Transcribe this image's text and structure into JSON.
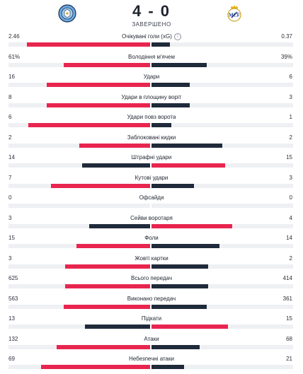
{
  "match": {
    "home_score": "4",
    "separator": "-",
    "away_score": "0",
    "status": "ЗАВЕРШЕНО"
  },
  "icons": {
    "home_logo": "manchester-city-crest-icon",
    "away_logo": "real-madrid-crest-icon",
    "info": "info-icon"
  },
  "colors": {
    "leading": "#e8254f",
    "trailing": "#1f2a3a",
    "track": "#eef0f3"
  },
  "stats": [
    {
      "label": "Очікувані голи (xG)",
      "home": "2.46",
      "away": "0.37",
      "home_share": 0.87,
      "away_share": 0.13,
      "info": true
    },
    {
      "label": "Володіння м'ячем",
      "home": "61%",
      "away": "39%",
      "home_share": 0.61,
      "away_share": 0.39
    },
    {
      "label": "Удари",
      "home": "16",
      "away": "6",
      "home_share": 0.73,
      "away_share": 0.27
    },
    {
      "label": "Удари в площину воріт",
      "home": "8",
      "away": "3",
      "home_share": 0.73,
      "away_share": 0.27
    },
    {
      "label": "Удари повз ворота",
      "home": "6",
      "away": "1",
      "home_share": 0.86,
      "away_share": 0.14
    },
    {
      "label": "Заблоковані кидки",
      "home": "2",
      "away": "2",
      "home_share": 0.5,
      "away_share": 0.5
    },
    {
      "label": "Штрафні удари",
      "home": "14",
      "away": "15",
      "home_share": 0.48,
      "away_share": 0.52
    },
    {
      "label": "Кутові удари",
      "home": "7",
      "away": "3",
      "home_share": 0.7,
      "away_share": 0.3
    },
    {
      "label": "Офсайди",
      "home": "0",
      "away": "0",
      "home_share": 0,
      "away_share": 0
    },
    {
      "label": "Сейви воротаря",
      "home": "3",
      "away": "4",
      "home_share": 0.43,
      "away_share": 0.57
    },
    {
      "label": "Фоли",
      "home": "15",
      "away": "14",
      "home_share": 0.52,
      "away_share": 0.48
    },
    {
      "label": "Жовті картки",
      "home": "3",
      "away": "2",
      "home_share": 0.6,
      "away_share": 0.4
    },
    {
      "label": "Всього передач",
      "home": "625",
      "away": "414",
      "home_share": 0.6,
      "away_share": 0.4
    },
    {
      "label": "Виконано передач",
      "home": "563",
      "away": "361",
      "home_share": 0.61,
      "away_share": 0.39
    },
    {
      "label": "Підкати",
      "home": "13",
      "away": "15",
      "home_share": 0.46,
      "away_share": 0.54
    },
    {
      "label": "Атаки",
      "home": "132",
      "away": "68",
      "home_share": 0.66,
      "away_share": 0.34
    },
    {
      "label": "Небезпечні атаки",
      "home": "69",
      "away": "21",
      "home_share": 0.77,
      "away_share": 0.23
    }
  ]
}
